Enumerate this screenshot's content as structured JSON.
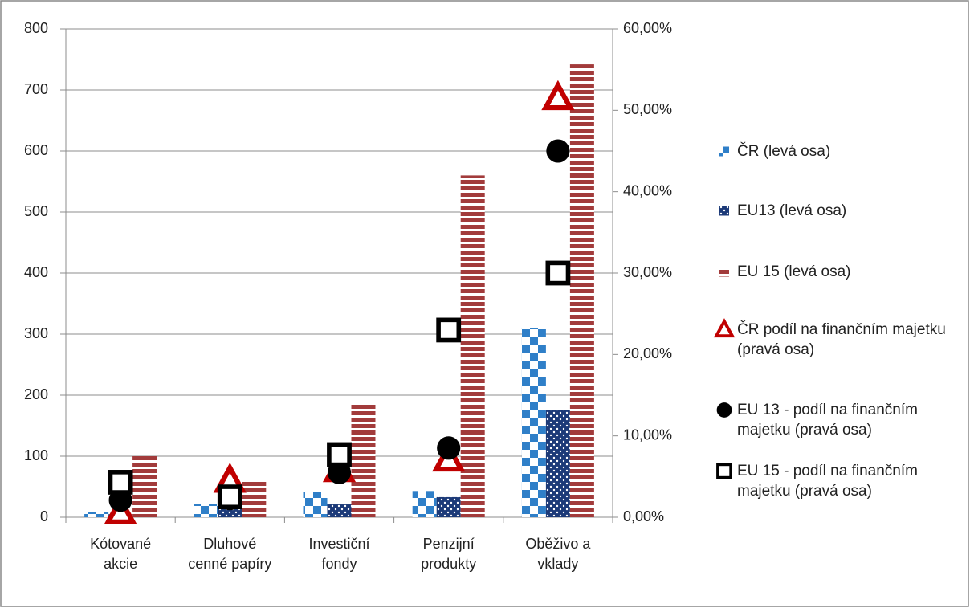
{
  "chart_data": {
    "type": "bar",
    "categories": [
      "Kótované akcie",
      "Dluhové cenné papíry",
      "Investiční fondy",
      "Penzijní produkty",
      "Oběživo a vklady"
    ],
    "series": [
      {
        "name": "ČR (levá osa)",
        "type": "bar",
        "pattern": "checker",
        "color": "#2f7fc8",
        "values": [
          8,
          22,
          42,
          43,
          310
        ]
      },
      {
        "name": "EU13 (levá osa)",
        "type": "bar",
        "pattern": "dots",
        "color": "#1c3a78",
        "values": [
          5,
          20,
          21,
          33,
          176
        ]
      },
      {
        "name": "EU 15 (levá osa)",
        "type": "bar",
        "pattern": "stripes",
        "color": "#a23b3b",
        "values": [
          100,
          58,
          188,
          560,
          742
        ]
      },
      {
        "name": "ČR podíl na finančním majetku (pravá osa)",
        "type": "marker",
        "marker": "triangle",
        "axis": "y2",
        "color": "#c00000",
        "values": [
          0.6,
          4.5,
          5.8,
          7.1,
          51.5
        ]
      },
      {
        "name": "EU 13 - podíl na finančním majetku (pravá osa)",
        "type": "marker",
        "marker": "circle",
        "axis": "y2",
        "color": "#000000",
        "values": [
          2.1,
          2.3,
          5.5,
          8.5,
          45
        ]
      },
      {
        "name": "EU 15 - podíl na finančním majetku (pravá osa)",
        "type": "marker",
        "marker": "square",
        "axis": "y2",
        "color": "#000000",
        "values": [
          4.3,
          2.5,
          7.7,
          23,
          30
        ]
      }
    ],
    "ylim": [
      0,
      800
    ],
    "yticks": [
      0,
      100,
      200,
      300,
      400,
      500,
      600,
      700,
      800
    ],
    "y2lim": [
      0,
      60
    ],
    "y2ticks": [
      {
        "value": 0,
        "label": "0,00%"
      },
      {
        "value": 10,
        "label": "10,00%"
      },
      {
        "value": 20,
        "label": "20,00%"
      },
      {
        "value": 30,
        "label": "30,00%"
      },
      {
        "value": 40,
        "label": "40,00%"
      },
      {
        "value": 50,
        "label": "50,00%"
      },
      {
        "value": 60,
        "label": "60,00%"
      }
    ],
    "grid": true,
    "legend": "right"
  }
}
